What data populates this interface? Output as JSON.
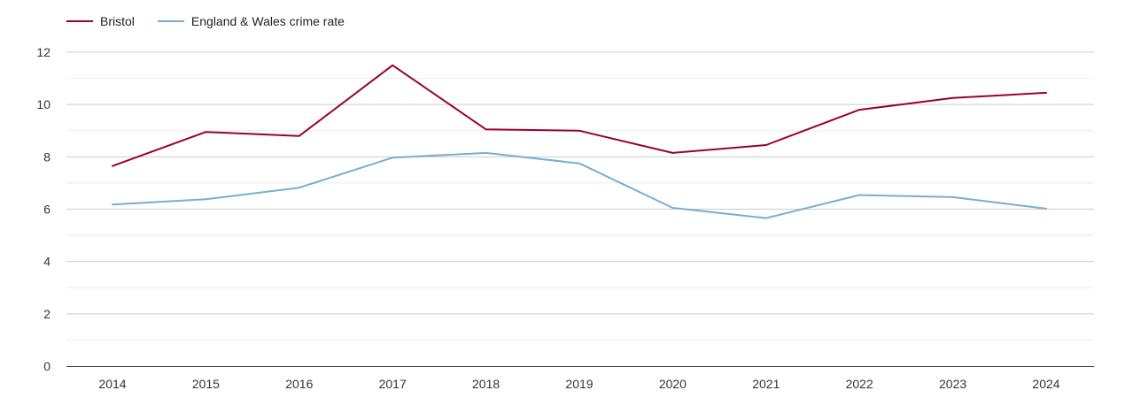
{
  "chart_data": {
    "type": "line",
    "title": "",
    "xlabel": "",
    "ylabel": "",
    "categories": [
      "2014",
      "2015",
      "2016",
      "2017",
      "2018",
      "2019",
      "2020",
      "2021",
      "2022",
      "2023",
      "2024"
    ],
    "ylim": [
      0,
      12
    ],
    "yticks": [
      0,
      2,
      4,
      6,
      8,
      10,
      12
    ],
    "grid": true,
    "legend_position": "top-left",
    "series": [
      {
        "name": "Bristol",
        "color": "#990033",
        "values": [
          7.65,
          8.95,
          8.8,
          11.5,
          9.05,
          9.0,
          8.15,
          8.45,
          9.8,
          10.25,
          10.45
        ]
      },
      {
        "name": "England & Wales crime rate",
        "color": "#7aadd0",
        "values": [
          6.18,
          6.38,
          6.82,
          7.97,
          8.15,
          7.75,
          6.05,
          5.66,
          6.54,
          6.46,
          6.02
        ]
      }
    ]
  }
}
